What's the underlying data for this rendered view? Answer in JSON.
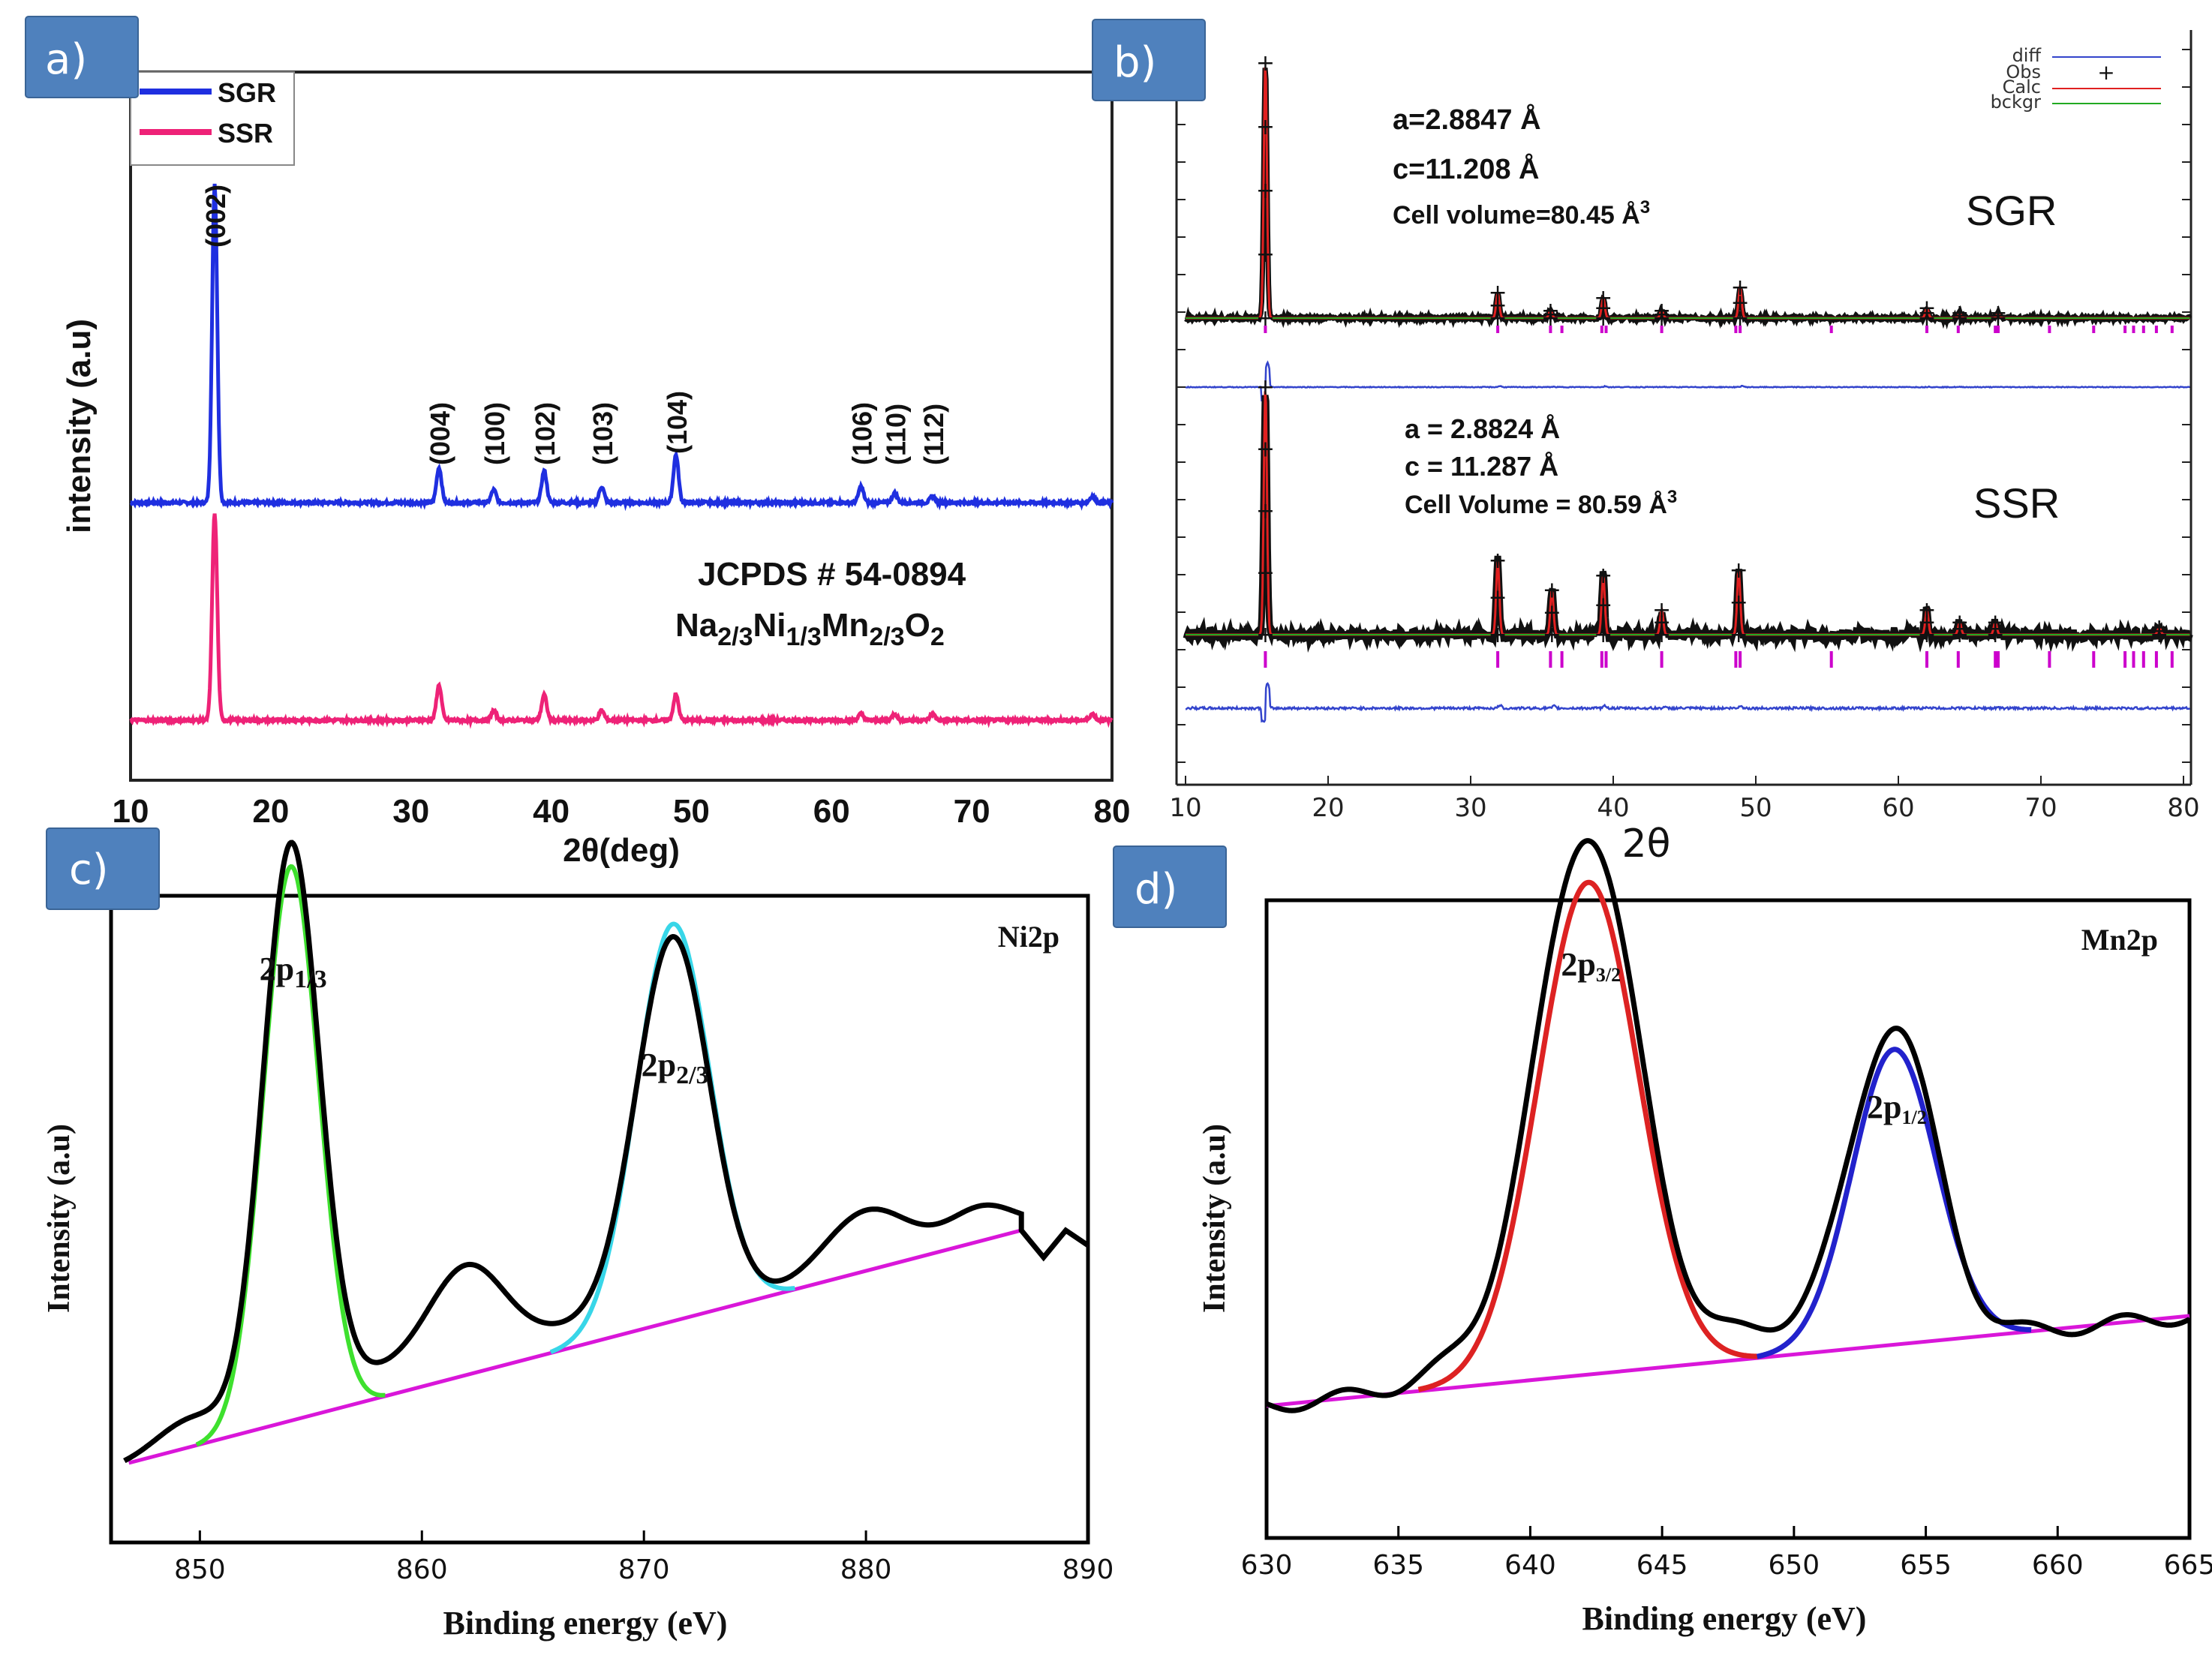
{
  "colors": {
    "sgr": "#1f2fe0",
    "ssr": "#ee2277",
    "black": "#000000",
    "calc": "#e02020",
    "bckgr": "#22aa22",
    "diff": "#3344cc",
    "ticks": "#cc00cc",
    "ni_fit1": "#3ee02e",
    "ni_fit2": "#38d6e8",
    "mn_fit1": "#dd2222",
    "mn_fit2": "#2222cc",
    "baseline": "#d916d9",
    "badge": "#4f81bd"
  },
  "chart_data": [
    {
      "panel": "a)",
      "type": "line",
      "xlabel": "2θ(deg)",
      "ylabel": "intensity (a.u)",
      "xlim": [
        10,
        80
      ],
      "x_ticks": [
        "10",
        "20",
        "30",
        "40",
        "50",
        "60",
        "70",
        "80"
      ],
      "legend": {
        "position": "top-left",
        "entries": [
          "SGR",
          "SSR"
        ]
      },
      "annotation_line1": "JCPDS # 54-0894",
      "formula": {
        "na": "Na",
        "na_sub": "2/3",
        "ni": "Ni",
        "ni_sub": "1/3",
        "mn": "Mn",
        "mn_sub": "2/3",
        "o": "O",
        "o_sub": "2"
      },
      "peak_labels": [
        {
          "label": "(002)",
          "x": 16.0
        },
        {
          "label": "(004)",
          "x": 32.0
        },
        {
          "label": "(100)",
          "x": 35.9
        },
        {
          "label": "(102)",
          "x": 39.5
        },
        {
          "label": "(103)",
          "x": 43.6
        },
        {
          "label": "(104)",
          "x": 48.9
        },
        {
          "label": "(106)",
          "x": 62.1
        },
        {
          "label": "(110)",
          "x": 64.5
        },
        {
          "label": "(112)",
          "x": 67.2
        }
      ],
      "series": [
        {
          "name": "SGR",
          "offset": 50,
          "peaks": [
            [
              16.0,
              100
            ],
            [
              32.0,
              11
            ],
            [
              35.9,
              4
            ],
            [
              39.5,
              10
            ],
            [
              43.6,
              5
            ],
            [
              48.9,
              15
            ],
            [
              62.1,
              5
            ],
            [
              64.5,
              3
            ],
            [
              67.2,
              2
            ],
            [
              78.6,
              2
            ]
          ]
        },
        {
          "name": "SSR",
          "offset": 0,
          "peaks": [
            [
              16.0,
              65
            ],
            [
              32.0,
              11
            ],
            [
              35.9,
              3
            ],
            [
              39.5,
              8
            ],
            [
              43.6,
              3
            ],
            [
              48.9,
              8
            ],
            [
              62.1,
              2
            ],
            [
              64.5,
              2
            ],
            [
              67.2,
              2
            ],
            [
              78.6,
              2
            ]
          ]
        }
      ]
    },
    {
      "panel": "b)",
      "type": "line",
      "xlabel": "2θ",
      "xlim": [
        10,
        80
      ],
      "x_ticks": [
        "10",
        "20",
        "30",
        "40",
        "50",
        "60",
        "70",
        "80"
      ],
      "legend": {
        "position": "top-right",
        "entries": [
          "diff",
          "Obs",
          "Calc",
          "bckgr"
        ]
      },
      "phases": [
        {
          "name": "SGR",
          "lines": [
            "a=2.8847 Å",
            "c=11.208 Å",
            "Cell volume=80.45 Å"
          ],
          "volume_exp": "3"
        },
        {
          "name": "SSR",
          "lines": [
            "a = 2.8824 Å",
            "c = 11.287 Å",
            "Cell Volume = 80.59 Å"
          ],
          "volume_exp": "3"
        }
      ],
      "reflections": [
        15.6,
        31.9,
        35.6,
        36.4,
        39.2,
        39.5,
        43.4,
        48.6,
        48.9,
        55.3,
        62.0,
        64.2,
        66.8,
        67.0,
        70.6,
        73.7,
        75.9,
        76.5,
        77.2,
        78.1,
        79.2
      ],
      "peaks_sgr": [
        [
          15.6,
          100
        ],
        [
          31.9,
          10
        ],
        [
          35.6,
          3
        ],
        [
          39.3,
          8
        ],
        [
          43.4,
          3
        ],
        [
          48.9,
          12
        ],
        [
          62.0,
          4
        ],
        [
          64.3,
          2
        ],
        [
          67.0,
          2
        ]
      ],
      "peaks_ssr": [
        [
          15.6,
          100
        ],
        [
          31.9,
          30
        ],
        [
          35.7,
          18
        ],
        [
          39.3,
          24
        ],
        [
          43.4,
          10
        ],
        [
          48.8,
          26
        ],
        [
          62.0,
          10
        ],
        [
          64.3,
          5
        ],
        [
          66.8,
          5
        ],
        [
          78.3,
          3
        ]
      ]
    },
    {
      "panel": "c)",
      "type": "line",
      "xlabel": "Binding energy (eV)",
      "ylabel": "Intensity (a.u)",
      "element": "Ni2p",
      "xlim": [
        846,
        890
      ],
      "x_ticks": [
        "850",
        "860",
        "870",
        "880",
        "890"
      ],
      "peak_labels": [
        {
          "main": "2p",
          "sub": "1/3",
          "x": 854.2
        },
        {
          "main": "2p",
          "sub": "2/3",
          "x": 871.4
        }
      ],
      "fits": [
        {
          "name": "2p1/3",
          "center": 854.1,
          "height": 0.74,
          "width": 1.25
        },
        {
          "name": "2p2/3",
          "center": 871.3,
          "height": 0.53,
          "width": 1.65
        }
      ]
    },
    {
      "panel": "d)",
      "type": "line",
      "xlabel": "Binding energy (eV)",
      "ylabel": "Intensity (a.u)",
      "element": "Mn2p",
      "xlim": [
        630,
        665
      ],
      "x_ticks": [
        "630",
        "635",
        "640",
        "645",
        "650",
        "655",
        "660",
        "665"
      ],
      "peak_labels": [
        {
          "main": "2p",
          "sub": "3/2",
          "x": 642.3
        },
        {
          "main": "2p",
          "sub": "1/2",
          "x": 653.9
        }
      ],
      "fits": [
        {
          "name": "2p3/2",
          "center": 642.2,
          "height": 0.8,
          "width": 1.9
        },
        {
          "name": "2p1/2",
          "center": 653.8,
          "height": 0.48,
          "width": 1.6
        }
      ]
    }
  ]
}
